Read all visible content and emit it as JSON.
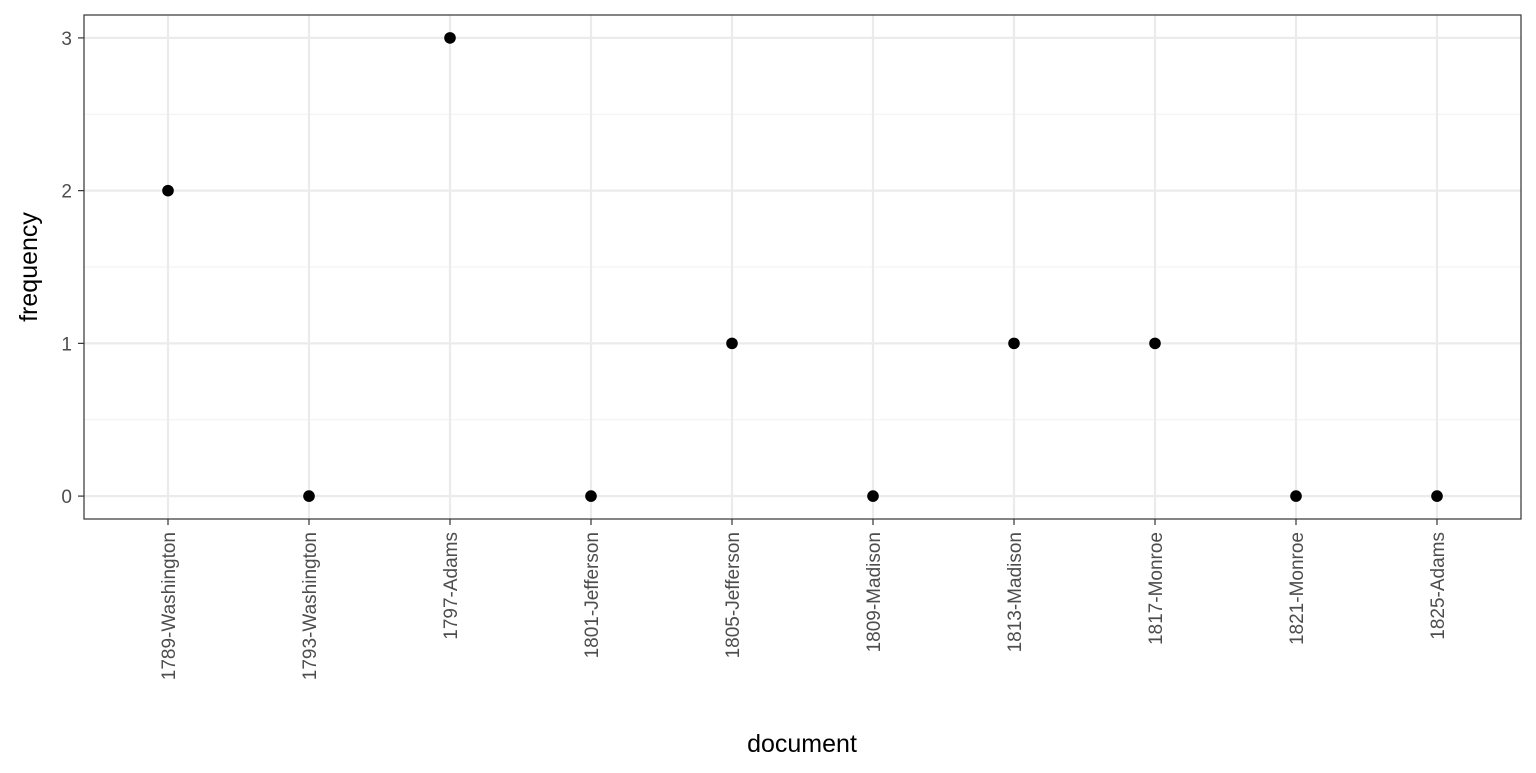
{
  "chart_data": {
    "type": "scatter",
    "title": "",
    "xlabel": "document",
    "ylabel": "frequency",
    "categories": [
      "1789-Washington",
      "1793-Washington",
      "1797-Adams",
      "1801-Jefferson",
      "1805-Jefferson",
      "1809-Madison",
      "1813-Madison",
      "1817-Monroe",
      "1821-Monroe",
      "1825-Adams"
    ],
    "values": [
      2,
      0,
      3,
      0,
      1,
      0,
      1,
      1,
      0,
      0
    ],
    "ylim": [
      -0.15,
      3.15
    ],
    "yticks": [
      0,
      1,
      2,
      3
    ],
    "ytick_labels": [
      "0",
      "1",
      "2",
      "3"
    ],
    "grid": true,
    "colors": {
      "point": "#000000",
      "grid_major": "#ebebeb",
      "grid_minor": "#f2f2f2",
      "panel_border": "#333333",
      "tick_text": "#4d4d4d"
    }
  }
}
